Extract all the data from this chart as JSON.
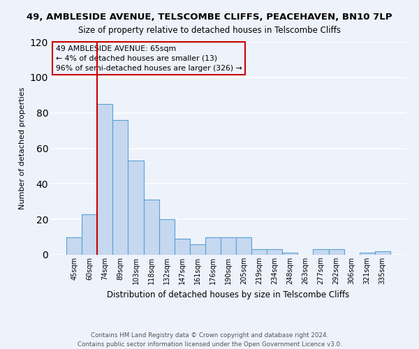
{
  "title": "49, AMBLESIDE AVENUE, TELSCOMBE CLIFFS, PEACEHAVEN, BN10 7LP",
  "subtitle": "Size of property relative to detached houses in Telscombe Cliffs",
  "xlabel": "Distribution of detached houses by size in Telscombe Cliffs",
  "ylabel": "Number of detached properties",
  "categories": [
    "45sqm",
    "60sqm",
    "74sqm",
    "89sqm",
    "103sqm",
    "118sqm",
    "132sqm",
    "147sqm",
    "161sqm",
    "176sqm",
    "190sqm",
    "205sqm",
    "219sqm",
    "234sqm",
    "248sqm",
    "263sqm",
    "277sqm",
    "292sqm",
    "306sqm",
    "321sqm",
    "335sqm"
  ],
  "values": [
    10,
    23,
    85,
    76,
    53,
    31,
    20,
    9,
    6,
    10,
    10,
    10,
    3,
    3,
    1,
    0,
    3,
    3,
    0,
    1,
    2
  ],
  "bar_color": "#c5d8f0",
  "bar_edge_color": "#5a9fd4",
  "background_color": "#eef2fb",
  "grid_color": "#ffffff",
  "vline_color": "#cc0000",
  "ylim": [
    0,
    120
  ],
  "yticks": [
    0,
    20,
    40,
    60,
    80,
    100,
    120
  ],
  "annotation_title": "49 AMBLESIDE AVENUE: 65sqm",
  "annotation_line1": "← 4% of detached houses are smaller (13)",
  "annotation_line2": "96% of semi-detached houses are larger (326) →",
  "annotation_box_color": "#cc0000",
  "footer_line1": "Contains HM Land Registry data © Crown copyright and database right 2024.",
  "footer_line2": "Contains public sector information licensed under the Open Government Licence v3.0."
}
